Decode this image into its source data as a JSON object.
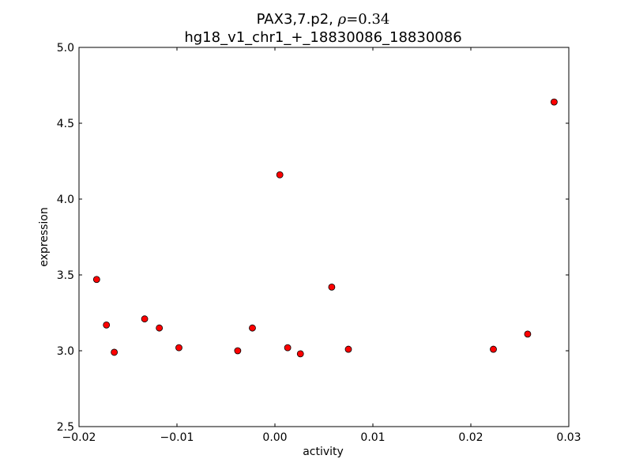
{
  "chart_data": {
    "type": "scatter",
    "title_line1_prefix": "PAX3,7.p2, ",
    "title_rho_symbol": "ρ",
    "title_rho_value": "=0.34",
    "title_line2": "hg18_v1_chr1_+_18830086_18830086",
    "xlabel": "activity",
    "ylabel": "expression",
    "xlim": [
      -0.02,
      0.03
    ],
    "ylim": [
      2.5,
      5.0
    ],
    "xticks": [
      -0.02,
      -0.01,
      0.0,
      0.01,
      0.02,
      0.03
    ],
    "xtick_labels": [
      "−0.02",
      "−0.01",
      "0.00",
      "0.01",
      "0.02",
      "0.03"
    ],
    "yticks": [
      2.5,
      3.0,
      3.5,
      4.0,
      4.5,
      5.0
    ],
    "ytick_labels": [
      "2.5",
      "3.0",
      "3.5",
      "4.0",
      "4.5",
      "5.0"
    ],
    "grid": false,
    "marker_color": "#ff0000",
    "marker_edge_color": "#000000",
    "points": [
      {
        "x": -0.0182,
        "y": 3.47
      },
      {
        "x": -0.0172,
        "y": 3.17
      },
      {
        "x": -0.0164,
        "y": 2.99
      },
      {
        "x": -0.0133,
        "y": 3.21
      },
      {
        "x": -0.0118,
        "y": 3.15
      },
      {
        "x": -0.0098,
        "y": 3.02
      },
      {
        "x": -0.0038,
        "y": 3.0
      },
      {
        "x": -0.0023,
        "y": 3.15
      },
      {
        "x": 0.0005,
        "y": 4.16
      },
      {
        "x": 0.0013,
        "y": 3.02
      },
      {
        "x": 0.0026,
        "y": 2.98
      },
      {
        "x": 0.0058,
        "y": 3.42
      },
      {
        "x": 0.0075,
        "y": 3.01
      },
      {
        "x": 0.0223,
        "y": 3.01
      },
      {
        "x": 0.0258,
        "y": 3.11
      },
      {
        "x": 0.0285,
        "y": 4.64
      }
    ]
  }
}
